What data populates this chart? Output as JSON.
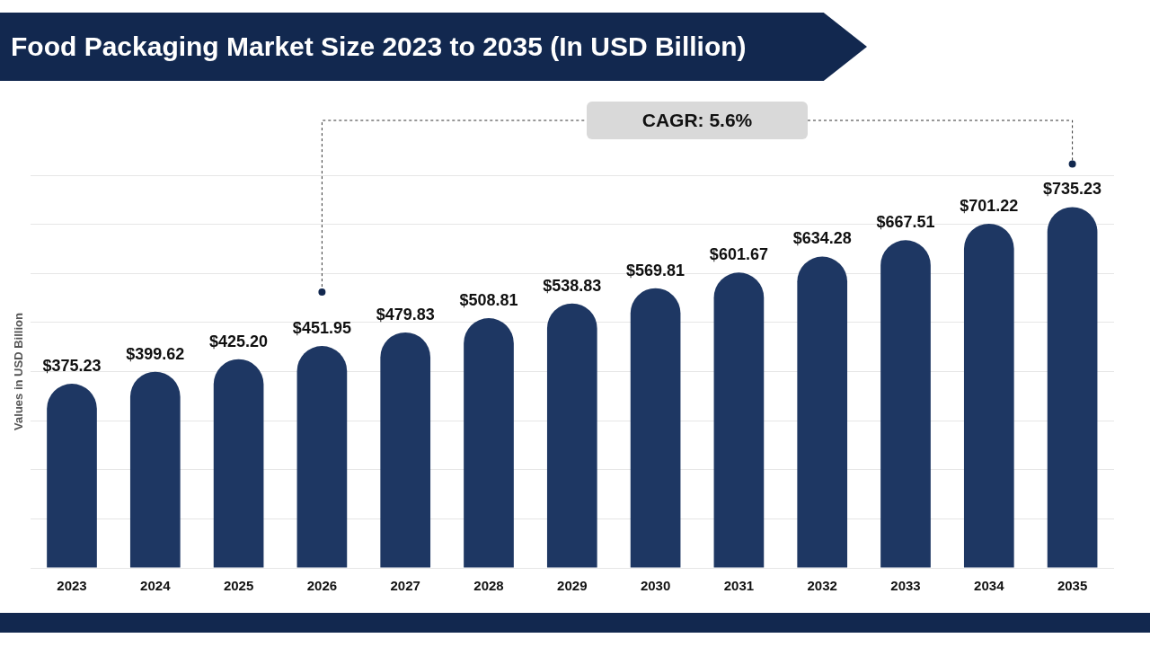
{
  "chart_data": {
    "type": "bar",
    "title": "Food Packaging Market Size 2023 to 2035 (In USD Billion)",
    "ylabel": "Values in USD Billion",
    "categories": [
      "2023",
      "2024",
      "2025",
      "2026",
      "2027",
      "2028",
      "2029",
      "2030",
      "2031",
      "2032",
      "2033",
      "2034",
      "2035"
    ],
    "values": [
      375.23,
      399.62,
      425.2,
      451.95,
      479.83,
      508.81,
      538.83,
      569.81,
      601.67,
      634.28,
      667.51,
      701.22,
      735.23
    ],
    "value_labels": [
      "$375.23",
      "$399.62",
      "$425.20",
      "$451.95",
      "$479.83",
      "$508.81",
      "$538.83",
      "$569.81",
      "$601.67",
      "$634.28",
      "$667.51",
      "$701.22",
      "$735.23"
    ],
    "color": "#1e3763",
    "annotations": [
      "CAGR: 5.6%"
    ],
    "grid": "y",
    "legend": false
  }
}
